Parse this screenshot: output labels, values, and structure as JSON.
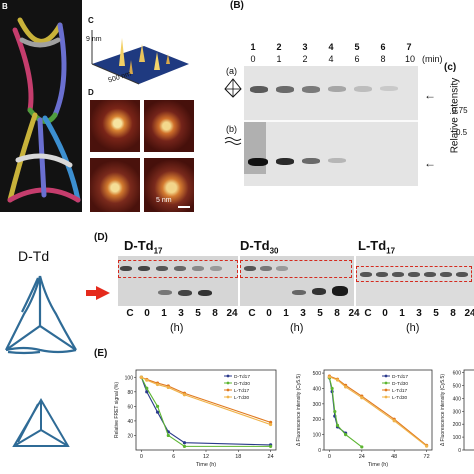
{
  "top_panel": {
    "label_b_left": "B",
    "label_c": "C",
    "label_d": "D",
    "label_b_right": "(B)",
    "label_c_right": "(c)",
    "afm_z": "9 nm",
    "afm_xy": "500 nm",
    "scale_bar": "5 nm",
    "gel": {
      "lane_numbers": [
        "1",
        "2",
        "3",
        "4",
        "5",
        "6",
        "7"
      ],
      "time_values": [
        "0",
        "1",
        "2",
        "4",
        "6",
        "8",
        "10"
      ],
      "time_unit": "(min)",
      "row_a": "(a)",
      "row_b": "(b)"
    },
    "y_axis_label": "Relative intensity",
    "y_ticks": [
      "0.75",
      "0.5"
    ]
  },
  "middle_panel": {
    "label_d": "(D)",
    "left_title": "D-Td",
    "groups": [
      {
        "name": "D-Td",
        "sub": "17"
      },
      {
        "name": "D-Td",
        "sub": "30"
      },
      {
        "name": "L-Td",
        "sub": "17"
      }
    ],
    "lane_labels": [
      "C",
      "0",
      "1",
      "3",
      "5",
      "8",
      "24",
      "C",
      "0",
      "1",
      "3",
      "5",
      "8",
      "24",
      "C",
      "0",
      "1",
      "3",
      "5",
      "8",
      "24"
    ],
    "hour_label": "(h)"
  },
  "bottom_panel": {
    "label_e": "(E)",
    "chart_data": [
      {
        "type": "line",
        "ylabel": "Relative FRET signal (%)",
        "xlabel": "Time (h)",
        "x_ticks": [
          "0",
          "6",
          "12",
          "18",
          "24"
        ],
        "y_ticks": [
          "20",
          "40",
          "60",
          "80",
          "100"
        ],
        "legend": [
          "D-Td17",
          "D-Td30",
          "L-Td17",
          "L-Td30"
        ],
        "series": [
          {
            "name": "D-Td17",
            "color": "#2b3a8c",
            "x": [
              0,
              1,
              3,
              5,
              8,
              24
            ],
            "y": [
              100,
              80,
              52,
              25,
              10,
              7
            ]
          },
          {
            "name": "D-Td30",
            "color": "#5cb531",
            "x": [
              0,
              1,
              3,
              5,
              8,
              24
            ],
            "y": [
              100,
              85,
              60,
              20,
              5,
              5
            ]
          },
          {
            "name": "L-Td17",
            "color": "#e0791f",
            "x": [
              0,
              1,
              3,
              5,
              8,
              24
            ],
            "y": [
              100,
              97,
              92,
              88,
              78,
              38
            ]
          },
          {
            "name": "L-Td30",
            "color": "#f0b44a",
            "x": [
              0,
              1,
              3,
              5,
              8,
              24
            ],
            "y": [
              100,
              96,
              90,
              86,
              76,
              35
            ]
          }
        ]
      },
      {
        "type": "line",
        "ylabel": "Δ Fluorescence intensity (Cy5.5)",
        "xlabel": "Time (h)",
        "x_ticks": [
          "0",
          "24",
          "48",
          "72"
        ],
        "y_ticks": [
          "0",
          "100",
          "200",
          "300",
          "400",
          "500"
        ],
        "legend": [
          "D-Td17",
          "D-Td30",
          "L-Td17",
          "L-Td30"
        ],
        "series": [
          {
            "name": "D-Td17",
            "color": "#2b3a8c",
            "x": [
              0,
              2,
              4,
              6,
              12
            ],
            "y": [
              470,
              380,
              220,
              150,
              110
            ]
          },
          {
            "name": "D-Td30",
            "color": "#5cb531",
            "x": [
              0,
              2,
              4,
              6,
              12,
              24
            ],
            "y": [
              470,
              400,
              250,
              160,
              100,
              20
            ]
          },
          {
            "name": "L-Td17",
            "color": "#e0791f",
            "x": [
              0,
              6,
              12,
              24,
              48,
              72
            ],
            "y": [
              480,
              460,
              420,
              350,
              200,
              30
            ]
          },
          {
            "name": "L-Td30",
            "color": "#f0b44a",
            "x": [
              0,
              6,
              12,
              24,
              48,
              72
            ],
            "y": [
              475,
              455,
              410,
              340,
              190,
              25
            ]
          }
        ]
      },
      {
        "type": "line",
        "ylabel": "Δ Fluorescence intensity (Cy5.5)",
        "x_ticks": [],
        "y_ticks": [
          "0",
          "100",
          "200",
          "300",
          "400",
          "500",
          "600"
        ],
        "legend": [],
        "series": []
      }
    ]
  }
}
